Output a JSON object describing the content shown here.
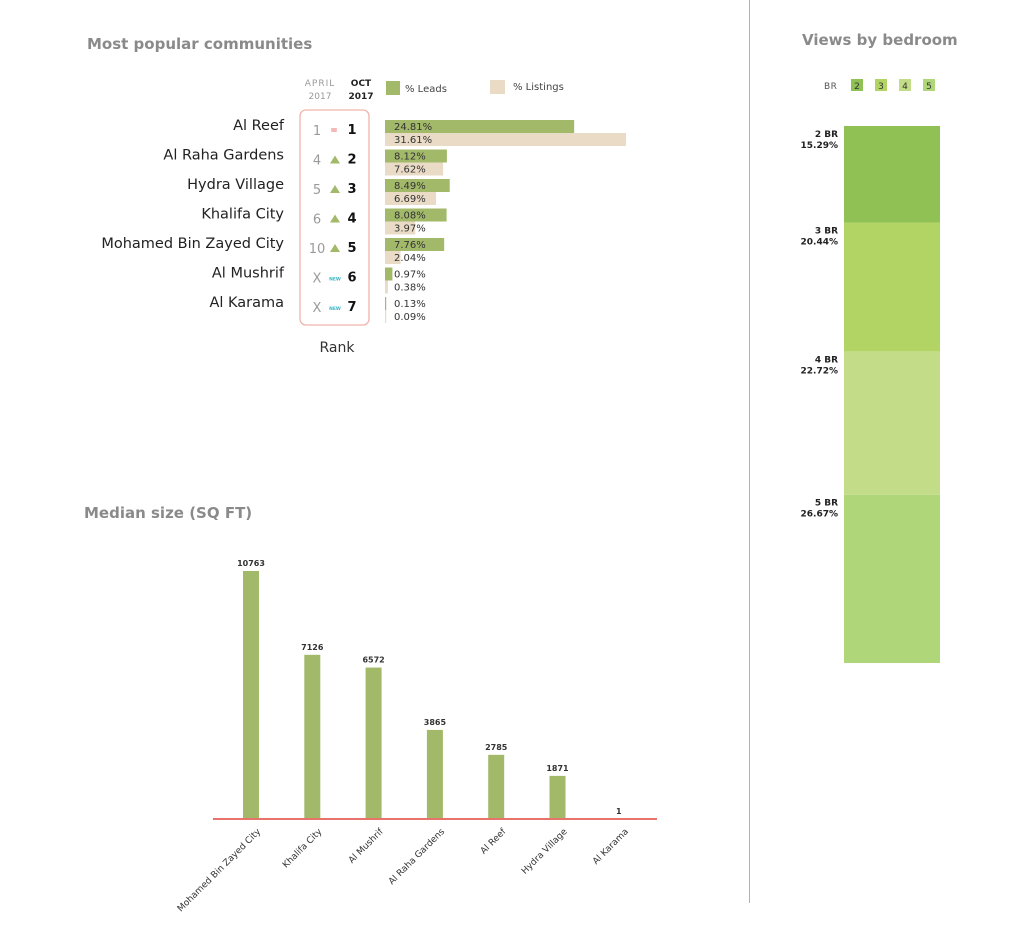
{
  "titles": {
    "communities": "Most popular communities",
    "median": "Median size (SQ FT)",
    "bedroom": "Views by bedroom"
  },
  "colors": {
    "leads": "#a3b96a",
    "listings": "#eadbc6",
    "axis": "#e8736b",
    "up": "#a3b96a",
    "equal": "#e8736b",
    "new": "#3bb5c4",
    "rank_box": "#f0b3ab",
    "muted_text": "#9a9a9a"
  },
  "chart_data": [
    {
      "type": "bar",
      "orientation": "horizontal",
      "title": "Most popular communities",
      "categories": [
        "Al Reef",
        "Al Raha Gardens",
        "Hydra Village",
        "Khalifa City",
        "Mohamed Bin Zayed City",
        "Al Mushrif",
        "Al Karama"
      ],
      "series": [
        {
          "name": "% Leads",
          "values": [
            24.81,
            8.12,
            8.49,
            8.08,
            7.76,
            0.97,
            0.13
          ],
          "labels": [
            "24.81%",
            "8.12%",
            "8.49%",
            "8.08%",
            "7.76%",
            "0.97%",
            "0.13%"
          ]
        },
        {
          "name": "% Listings",
          "values": [
            31.61,
            7.62,
            6.69,
            3.97,
            2.04,
            0.38,
            0.09
          ],
          "labels": [
            "31.61%",
            "7.62%",
            "6.69%",
            "3.97%",
            "2.04%",
            "0.38%",
            "0.09%"
          ]
        }
      ],
      "legend": [
        "% Leads",
        "% Listings"
      ],
      "legend_position": "top",
      "rank": {
        "label": "Rank",
        "april_header": [
          "APRIL",
          "2017"
        ],
        "oct_header": [
          "OCT",
          "2017"
        ],
        "april": [
          "1",
          "4",
          "5",
          "6",
          "10",
          "X",
          "X"
        ],
        "change": [
          "equal",
          "up",
          "up",
          "up",
          "up",
          "new",
          "new"
        ],
        "change_symbols": {
          "equal": "=",
          "up": "▲",
          "new": "NEW"
        },
        "oct": [
          "1",
          "2",
          "3",
          "4",
          "5",
          "6",
          "7"
        ]
      }
    },
    {
      "type": "bar",
      "title": "Median size (SQ FT)",
      "categories": [
        "Mohamed Bin Zayed City",
        "Khalifa City",
        "Al Mushrif",
        "Al Raha Gardens",
        "Al Reef",
        "Hydra Village",
        "Al Karama"
      ],
      "values": [
        10763,
        7126,
        6572,
        3865,
        2785,
        1871,
        1
      ],
      "labels": [
        "10763",
        "7126",
        "6572",
        "3865",
        "2785",
        "1871",
        "1"
      ],
      "ylim": [
        0,
        10763
      ]
    },
    {
      "type": "bar",
      "orientation": "stacked-vertical",
      "title": "Views by bedroom",
      "legend_label": "BR",
      "legend": [
        "2",
        "3",
        "4",
        "5"
      ],
      "segments": [
        {
          "name": "2 BR",
          "value": 15.29,
          "label": "15.29%",
          "color": "#8fc155"
        },
        {
          "name": "3 BR",
          "value": 20.44,
          "label": "20.44%",
          "color": "#b2d465"
        },
        {
          "name": "4 BR",
          "value": 22.72,
          "label": "22.72%",
          "color": "#c3dc87"
        },
        {
          "name": "5 BR",
          "value": 26.67,
          "label": "26.67%",
          "color": "#b0d67a"
        }
      ],
      "legend_colors": [
        "#8fc155",
        "#b2d465",
        "#c3dc87",
        "#b0d67a"
      ]
    }
  ]
}
